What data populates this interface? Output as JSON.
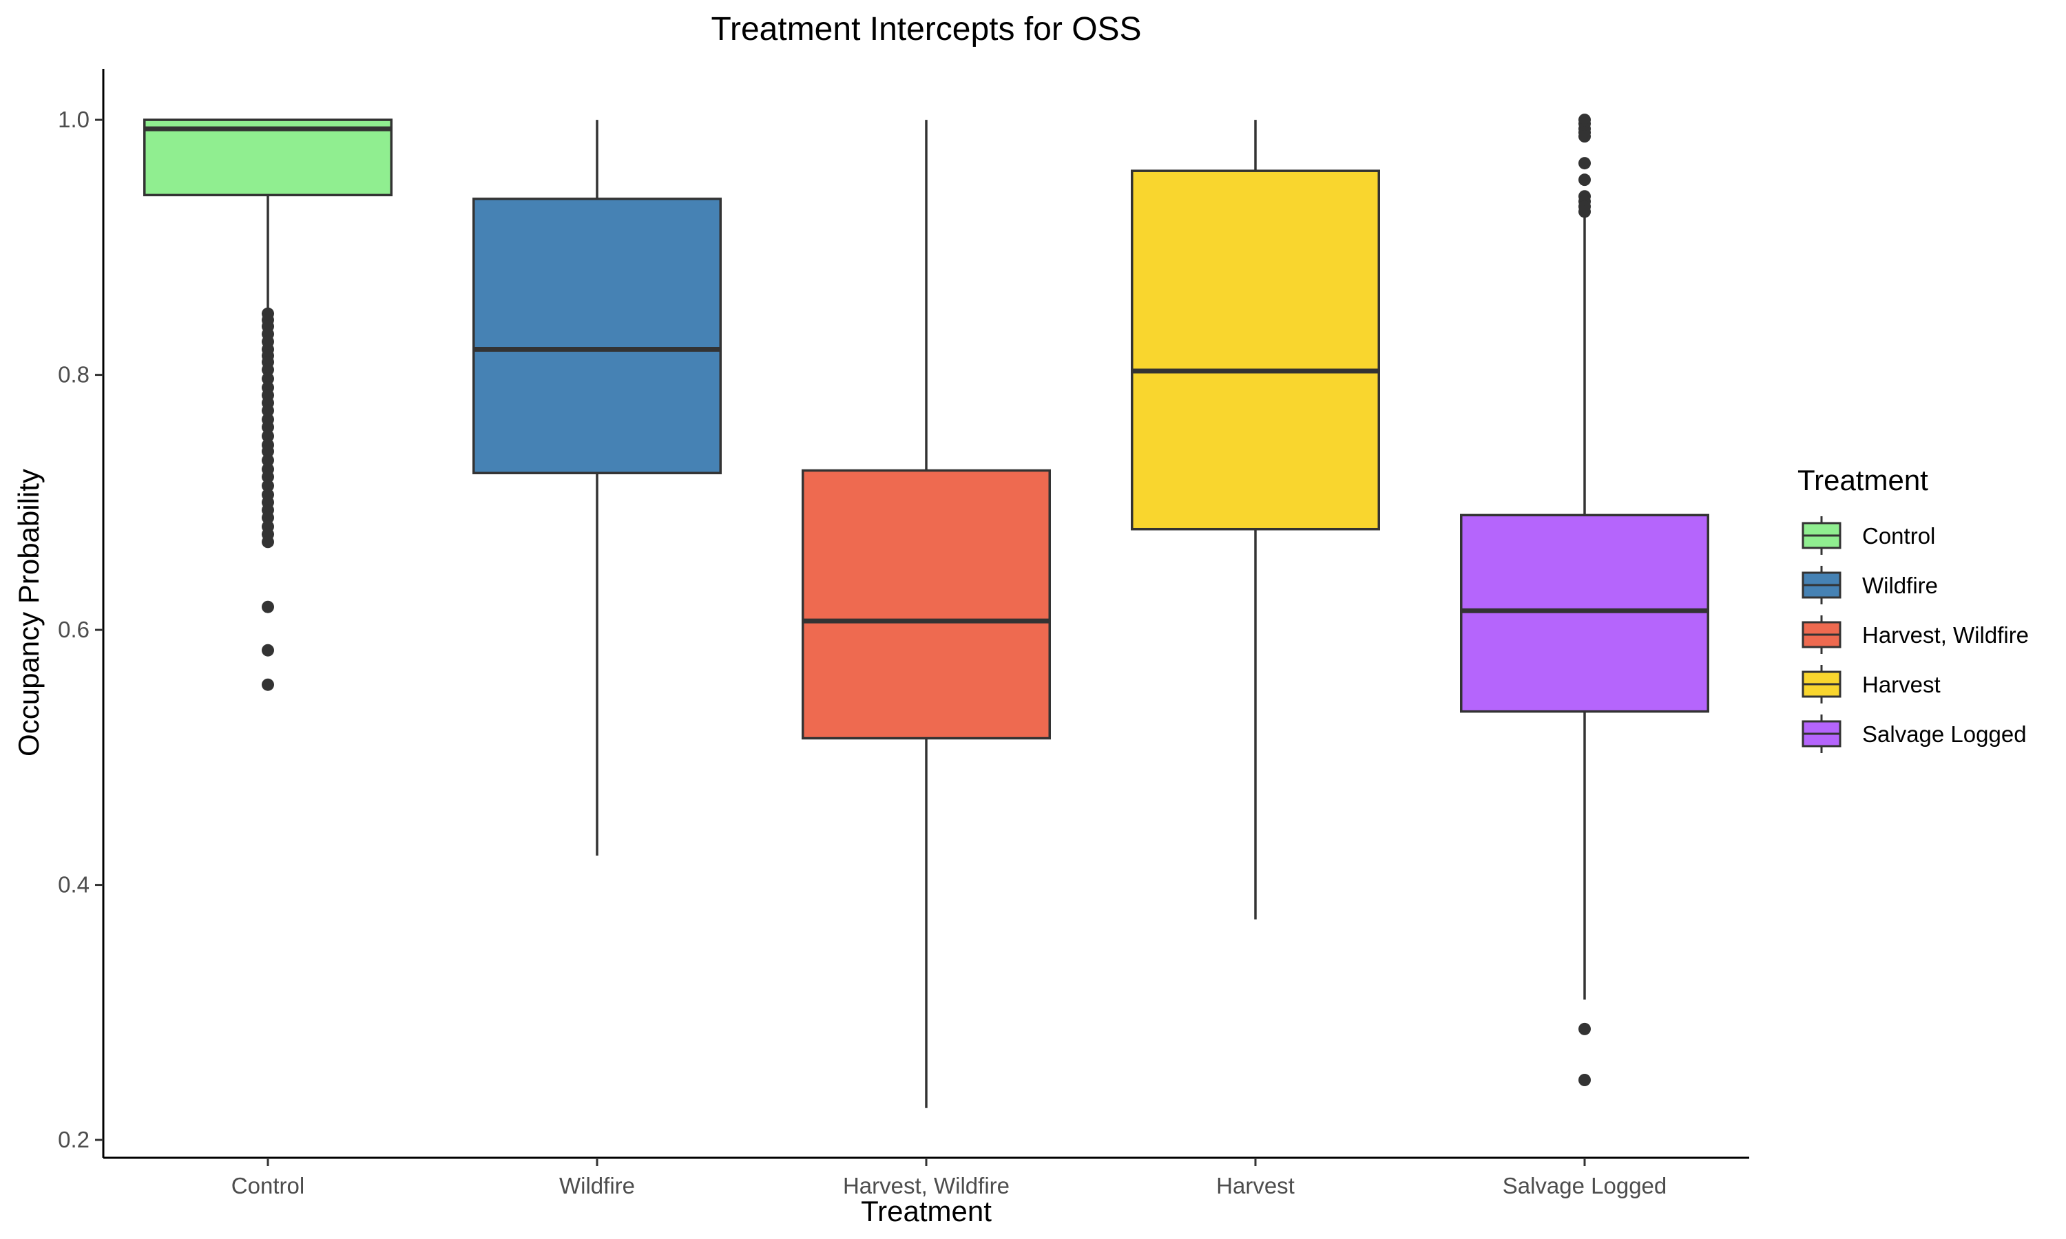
{
  "chart_data": {
    "type": "box",
    "title": "Treatment Intercepts for OSS",
    "xlabel": "Treatment",
    "ylabel": "Occupancy Probability",
    "ylim": [
      0.186,
      1.04
    ],
    "yticks": [
      0.2,
      0.4,
      0.6,
      0.8,
      1.0
    ],
    "ytick_labels": [
      "0.2",
      "0.4",
      "0.6",
      "0.8",
      "1.0"
    ],
    "grid": false,
    "legend": {
      "title": "Treatment",
      "placement": "right"
    },
    "categories": [
      "Control",
      "Wildfire",
      "Harvest, Wildfire",
      "Harvest",
      "Salvage Logged"
    ],
    "series": [
      {
        "name": "Control",
        "color": "#90ee90",
        "q1": 0.941,
        "median": 0.993,
        "q3": 1.0,
        "whisker_low": 0.852,
        "whisker_high": 1.0,
        "outliers": [
          0.848,
          0.843,
          0.838,
          0.832,
          0.826,
          0.82,
          0.815,
          0.81,
          0.804,
          0.797,
          0.79,
          0.784,
          0.778,
          0.772,
          0.765,
          0.759,
          0.752,
          0.745,
          0.74,
          0.733,
          0.726,
          0.72,
          0.713,
          0.706,
          0.7,
          0.694,
          0.688,
          0.681,
          0.675,
          0.669,
          0.618,
          0.584,
          0.557
        ]
      },
      {
        "name": "Wildfire",
        "color": "#4682b4",
        "q1": 0.723,
        "median": 0.82,
        "q3": 0.938,
        "whisker_low": 0.423,
        "whisker_high": 1.0,
        "outliers": []
      },
      {
        "name": "Harvest, Wildfire",
        "color": "#ee6a50",
        "q1": 0.515,
        "median": 0.607,
        "q3": 0.725,
        "whisker_low": 0.225,
        "whisker_high": 1.0,
        "outliers": []
      },
      {
        "name": "Harvest",
        "color": "#f9d62e",
        "q1": 0.679,
        "median": 0.803,
        "q3": 0.96,
        "whisker_low": 0.373,
        "whisker_high": 1.0,
        "outliers": []
      },
      {
        "name": "Salvage Logged",
        "color": "#b565fc",
        "q1": 0.536,
        "median": 0.615,
        "q3": 0.69,
        "whisker_low": 0.31,
        "whisker_high": 0.925,
        "outliers": [
          1.0,
          0.997,
          0.993,
          0.99,
          0.987,
          0.966,
          0.953,
          0.94,
          0.936,
          0.932,
          0.928,
          0.287,
          0.247
        ]
      }
    ]
  }
}
